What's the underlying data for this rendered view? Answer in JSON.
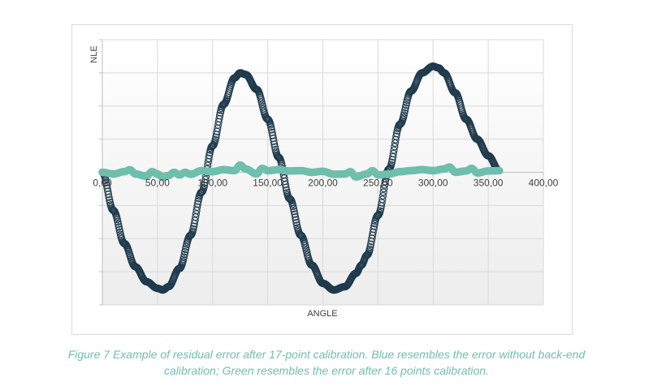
{
  "chart_data": {
    "type": "scatter",
    "xlabel": "ANGLE",
    "ylabel": "NLE",
    "xlim": [
      0,
      400
    ],
    "ylim": [
      -4,
      4
    ],
    "x_ticks": [
      {
        "value": 0,
        "label": "0,00"
      },
      {
        "value": 50,
        "label": "50,00"
      },
      {
        "value": 100,
        "label": "100,00"
      },
      {
        "value": 150,
        "label": "150,00"
      },
      {
        "value": 200,
        "label": "200,00"
      },
      {
        "value": 250,
        "label": "250,00"
      },
      {
        "value": 300,
        "label": "300,00"
      },
      {
        "value": 350,
        "label": "350,00"
      },
      {
        "value": 400,
        "label": "400,00"
      }
    ],
    "y_grid_values": [
      -4,
      -3,
      -2,
      -1,
      0,
      1,
      2,
      3,
      4
    ],
    "grid": true,
    "legend": "none",
    "series": [
      {
        "color": "#1f3b4d",
        "x": [
          0,
          10,
          20,
          30,
          40,
          50,
          55,
          60,
          70,
          80,
          90,
          100,
          110,
          120,
          125,
          130,
          140,
          150,
          160,
          170,
          180,
          190,
          200,
          210,
          220,
          230,
          235,
          240,
          250,
          260,
          270,
          280,
          290,
          300,
          305,
          310,
          320,
          330,
          340,
          350,
          360
        ],
        "y": [
          0,
          -1.15,
          -2.15,
          -2.85,
          -3.3,
          -3.5,
          -3.55,
          -3.45,
          -2.9,
          -1.9,
          -0.6,
          0.8,
          2.05,
          2.85,
          3.0,
          2.95,
          2.5,
          1.6,
          0.45,
          -0.8,
          -1.9,
          -2.8,
          -3.35,
          -3.55,
          -3.45,
          -3.05,
          -2.8,
          -2.5,
          -1.3,
          0.1,
          1.45,
          2.45,
          3.0,
          3.2,
          3.15,
          3.0,
          2.4,
          1.6,
          1.0,
          0.5,
          0.05
        ]
      },
      {
        "color": "#6fbfad",
        "x": [
          0,
          10,
          20,
          25,
          30,
          40,
          45,
          50,
          55,
          60,
          65,
          70,
          75,
          80,
          90,
          100,
          110,
          120,
          125,
          130,
          140,
          145,
          150,
          160,
          170,
          180,
          190,
          200,
          210,
          220,
          225,
          230,
          240,
          245,
          250,
          260,
          270,
          280,
          290,
          300,
          310,
          315,
          320,
          330,
          335,
          340,
          350,
          360
        ],
        "y": [
          0,
          -0.05,
          0.02,
          0.08,
          -0.05,
          -0.12,
          0.02,
          -0.05,
          -0.15,
          -0.1,
          0,
          -0.08,
          0,
          -0.06,
          0.05,
          0.02,
          0.08,
          0.05,
          0.22,
          0.1,
          -0.05,
          0.12,
          0.05,
          0.08,
          0.04,
          0.05,
          0,
          0.03,
          -0.06,
          -0.05,
          0.02,
          -0.14,
          -0.05,
          0.05,
          -0.08,
          -0.05,
          0.02,
          0.05,
          0.08,
          0.05,
          0.1,
          0.16,
          0,
          0.04,
          0.12,
          -0.02,
          0.04,
          0.05
        ]
      }
    ]
  },
  "caption": {
    "line1": "Figure 7 Example of residual error after 17-point calibration. Blue resembles the error without back-end",
    "line2": "calibration; Green resembles the error after 16 points calibration."
  }
}
